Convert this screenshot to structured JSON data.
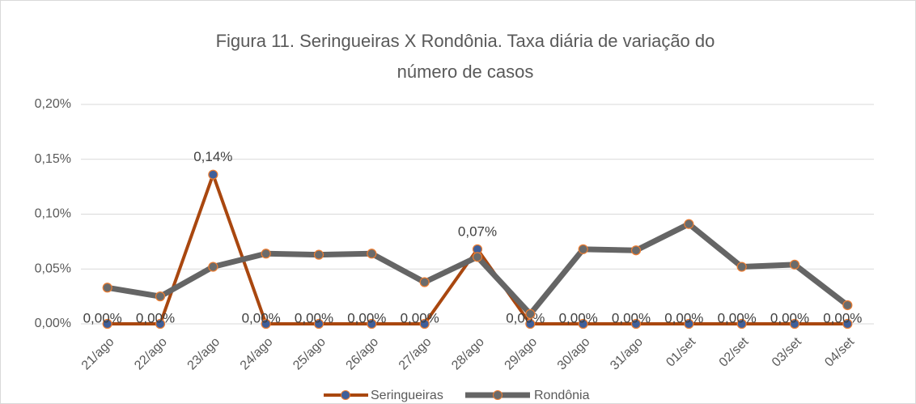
{
  "chart_data": {
    "type": "line",
    "title": "Figura 11. Seringueiras X Rondônia. Taxa diária de variação do",
    "subtitle": "número de casos",
    "categories": [
      "21/ago",
      "22/ago",
      "23/ago",
      "24/ago",
      "25/ago",
      "26/ago",
      "27/ago",
      "28/ago",
      "29/ago",
      "30/ago",
      "31/ago",
      "01/set",
      "02/set",
      "03/set",
      "04/set"
    ],
    "series": [
      {
        "name": "Seringueiras",
        "color": "#a9470f",
        "marker_color": "#3f5f9a",
        "values": [
          0,
          0,
          0.136,
          0,
          0,
          0,
          0,
          0.068,
          0,
          0,
          0,
          0,
          0,
          0,
          0
        ],
        "value_labels": [
          "0,00%",
          "0,00%",
          "0,14%",
          "0,00%",
          "0,00%",
          "0,00%",
          "0,00%",
          "0,07%",
          "0,00%",
          "0,00%",
          "0,00%",
          "0,00%",
          "0,00%",
          "0,00%",
          "0,00%"
        ]
      },
      {
        "name": "Rondônia",
        "color": "#656565",
        "marker_color": "#6b6b6b",
        "values": [
          0.033,
          0.025,
          0.052,
          0.064,
          0.063,
          0.064,
          0.038,
          0.061,
          0.009,
          0.068,
          0.067,
          0.091,
          0.052,
          0.054,
          0.017
        ]
      }
    ],
    "ylim": [
      0,
      0.2
    ],
    "yticks": [
      {
        "value": 0,
        "label": "0,00%"
      },
      {
        "value": 0.05,
        "label": "0,05%"
      },
      {
        "value": 0.1,
        "label": "0,10%"
      },
      {
        "value": 0.15,
        "label": "0,15%"
      },
      {
        "value": 0.2,
        "label": "0,20%"
      }
    ],
    "grid": true,
    "legend": "bottom"
  }
}
